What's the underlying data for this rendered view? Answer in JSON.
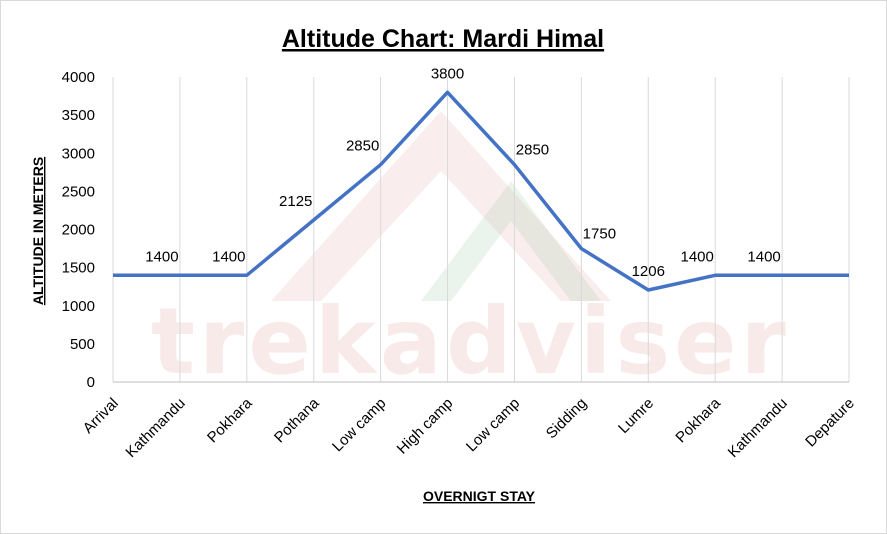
{
  "watermark": {
    "text": "trekadviser",
    "colors": [
      "#d98e86",
      "#8fbf9a"
    ]
  },
  "chart_data": {
    "type": "line",
    "title": "Altitude Chart: Mardi Himal",
    "xlabel": "OVERNIGT STAY",
    "ylabel": "ALTITUDE IN METERS",
    "categories": [
      "Arrival",
      "Kathmandu",
      "Pokhara",
      "Pothana",
      "Low camp",
      "High camp",
      "Low camp",
      "Sidding",
      "Lumre",
      "Pokhara",
      "Kathmandu",
      "Depature"
    ],
    "series": [
      {
        "values": [
          1400,
          1400,
          1400,
          2125,
          2850,
          3800,
          2850,
          1750,
          1206,
          1400,
          1400,
          1400
        ],
        "data_labels": [
          "",
          "1400",
          "1400",
          "2125",
          "2850",
          "3800",
          "2850",
          "1750",
          "1206",
          "1400",
          "1400",
          ""
        ],
        "color": "#4472c4"
      }
    ],
    "ylim": [
      0,
      4000
    ],
    "yticks": [
      0,
      500,
      1000,
      1500,
      2000,
      2500,
      3000,
      3500,
      4000
    ],
    "grid": "vertical",
    "legend": "none"
  }
}
